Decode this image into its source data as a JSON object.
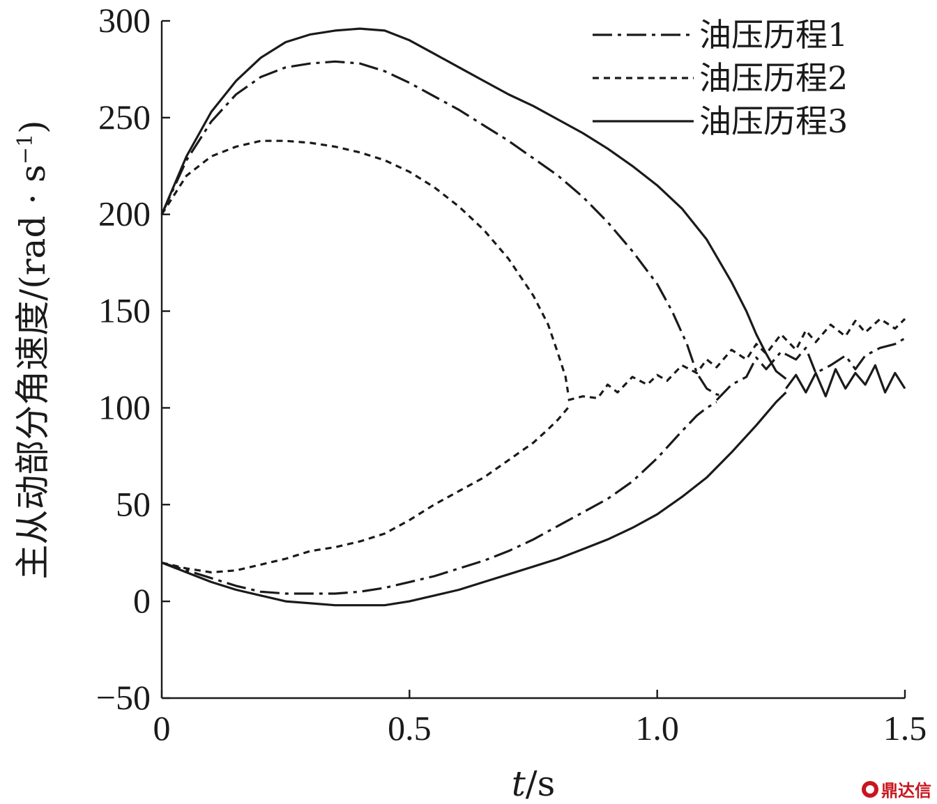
{
  "chart_data": {
    "type": "line",
    "title": "",
    "xlabel_italic": "t",
    "xlabel_rest": "/s",
    "ylabel_main": "主从动部分角速度/(rad · s",
    "ylabel_sup": "−1",
    "ylabel_close": ")",
    "xlim": [
      0,
      1.5
    ],
    "ylim": [
      -50,
      300
    ],
    "xticks": [
      0,
      0.5,
      1.0,
      1.5
    ],
    "xtick_labels": [
      "0",
      "0.5",
      "1.0",
      "1.5"
    ],
    "yticks": [
      -50,
      0,
      50,
      100,
      150,
      200,
      250,
      300
    ],
    "ytick_labels": [
      "−50",
      "0",
      "50",
      "100",
      "150",
      "200",
      "250",
      "300"
    ],
    "legend_position": "top-right",
    "grid": false,
    "series": [
      {
        "name": "油压历程1",
        "dash": "dashdot",
        "upper_branch": {
          "x": [
            0,
            0.05,
            0.1,
            0.15,
            0.2,
            0.25,
            0.3,
            0.35,
            0.4,
            0.45,
            0.5,
            0.55,
            0.6,
            0.65,
            0.7,
            0.75,
            0.8,
            0.85,
            0.9,
            0.95,
            1.0,
            1.03,
            1.06,
            1.08,
            1.1,
            1.12,
            1.135
          ],
          "y": [
            200,
            228,
            248,
            262,
            271,
            276,
            278,
            279,
            278,
            274,
            268,
            261,
            254,
            246,
            238,
            229,
            220,
            209,
            196,
            181,
            164,
            150,
            133,
            118,
            110,
            107,
            106
          ]
        },
        "lower_branch": {
          "x": [
            0,
            0.05,
            0.1,
            0.15,
            0.2,
            0.25,
            0.3,
            0.35,
            0.4,
            0.45,
            0.5,
            0.55,
            0.6,
            0.65,
            0.7,
            0.75,
            0.8,
            0.85,
            0.9,
            0.95,
            1.0,
            1.05,
            1.08,
            1.1,
            1.12
          ],
          "y": [
            20,
            16,
            12,
            8,
            5,
            4,
            4,
            4,
            5,
            7,
            10,
            13,
            17,
            21,
            26,
            32,
            39,
            46,
            53,
            62,
            74,
            88,
            96,
            100,
            103
          ]
        },
        "tail": {
          "x": [
            1.12,
            1.15,
            1.18,
            1.2,
            1.22,
            1.25,
            1.28,
            1.3,
            1.32,
            1.35,
            1.38,
            1.4,
            1.42,
            1.45,
            1.48,
            1.5
          ],
          "y": [
            104,
            112,
            116,
            126,
            120,
            129,
            125,
            131,
            118,
            122,
            127,
            120,
            127,
            131,
            133,
            136
          ]
        }
      },
      {
        "name": "油压历程2",
        "dash": "dashed",
        "upper_branch": {
          "x": [
            0,
            0.05,
            0.1,
            0.15,
            0.2,
            0.25,
            0.3,
            0.35,
            0.4,
            0.45,
            0.5,
            0.55,
            0.6,
            0.65,
            0.7,
            0.75,
            0.78,
            0.8,
            0.815,
            0.82
          ],
          "y": [
            200,
            220,
            230,
            235,
            238,
            238,
            237,
            235,
            232,
            228,
            222,
            214,
            204,
            192,
            177,
            158,
            143,
            128,
            116,
            108
          ]
        },
        "lower_branch": {
          "x": [
            0,
            0.05,
            0.1,
            0.15,
            0.2,
            0.25,
            0.3,
            0.35,
            0.4,
            0.45,
            0.5,
            0.55,
            0.6,
            0.65,
            0.7,
            0.75,
            0.78,
            0.8,
            0.82
          ],
          "y": [
            20,
            17,
            15,
            16,
            19,
            22,
            26,
            28,
            31,
            35,
            42,
            50,
            57,
            64,
            73,
            82,
            89,
            94,
            100
          ]
        },
        "tail": {
          "x": [
            0.82,
            0.85,
            0.88,
            0.9,
            0.92,
            0.95,
            0.98,
            1.0,
            1.02,
            1.05,
            1.08,
            1.1,
            1.12,
            1.15,
            1.18,
            1.2,
            1.22,
            1.25,
            1.28,
            1.3,
            1.32,
            1.35,
            1.38,
            1.4,
            1.42,
            1.45,
            1.48,
            1.5
          ],
          "y": [
            104,
            106,
            105,
            112,
            108,
            116,
            112,
            117,
            114,
            122,
            118,
            125,
            121,
            130,
            125,
            133,
            128,
            138,
            130,
            140,
            134,
            143,
            137,
            145,
            139,
            146,
            141,
            146
          ]
        }
      },
      {
        "name": "油压历程3",
        "dash": "solid",
        "upper_branch": {
          "x": [
            0,
            0.05,
            0.1,
            0.15,
            0.2,
            0.25,
            0.3,
            0.35,
            0.4,
            0.45,
            0.5,
            0.55,
            0.6,
            0.65,
            0.7,
            0.75,
            0.8,
            0.85,
            0.9,
            0.95,
            1.0,
            1.05,
            1.1,
            1.15,
            1.18,
            1.2,
            1.22,
            1.24,
            1.26
          ],
          "y": [
            200,
            230,
            253,
            269,
            281,
            289,
            293,
            295,
            296,
            295,
            290,
            283,
            276,
            269,
            262,
            256,
            249,
            242,
            234,
            225,
            215,
            203,
            187,
            165,
            150,
            138,
            128,
            119,
            115
          ]
        },
        "lower_branch": {
          "x": [
            0,
            0.05,
            0.1,
            0.15,
            0.2,
            0.25,
            0.3,
            0.35,
            0.4,
            0.45,
            0.5,
            0.55,
            0.6,
            0.65,
            0.7,
            0.75,
            0.8,
            0.85,
            0.9,
            0.95,
            1.0,
            1.05,
            1.1,
            1.15,
            1.2,
            1.22,
            1.24,
            1.26
          ],
          "y": [
            20,
            15,
            10,
            6,
            3,
            0,
            -1,
            -2,
            -2,
            -2,
            0,
            3,
            6,
            10,
            14,
            18,
            22,
            27,
            32,
            38,
            45,
            54,
            64,
            77,
            91,
            97,
            103,
            108
          ]
        },
        "tail": {
          "x": [
            1.26,
            1.28,
            1.3,
            1.32,
            1.34,
            1.36,
            1.38,
            1.4,
            1.42,
            1.44,
            1.46,
            1.48,
            1.5
          ],
          "y": [
            110,
            117,
            108,
            118,
            106,
            120,
            110,
            118,
            112,
            122,
            108,
            118,
            110
          ]
        }
      }
    ]
  },
  "watermark": {
    "text": "鼎达信"
  }
}
